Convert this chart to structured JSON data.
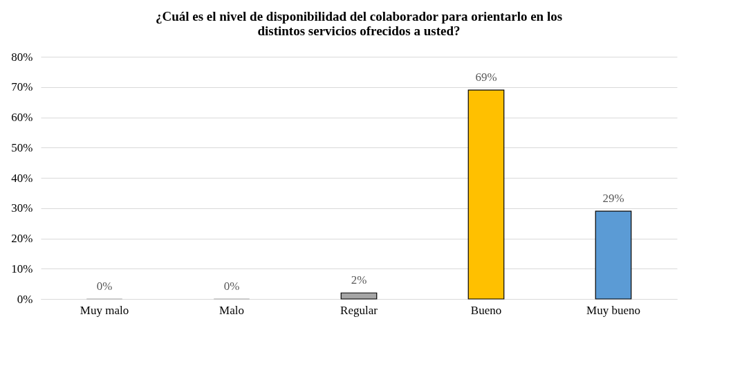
{
  "chart_data": {
    "type": "bar",
    "title": "¿Cuál es el nivel de disponibilidad del colaborador para orientarlo en los distintos servicios ofrecidos a usted?",
    "categories": [
      "Muy malo",
      "Malo",
      "Regular",
      "Bueno",
      "Muy bueno"
    ],
    "values": [
      0,
      0,
      2,
      69,
      29
    ],
    "colors": [
      "#a5a5a5",
      "#a5a5a5",
      "#a5a5a5",
      "#ffc000",
      "#5b9bd5"
    ],
    "value_labels": [
      "0%",
      "0%",
      "2%",
      "69%",
      "29%"
    ],
    "ylim": [
      0,
      80
    ],
    "yticks": [
      {
        "value": 0,
        "label": "0%"
      },
      {
        "value": 10,
        "label": "10%"
      },
      {
        "value": 20,
        "label": "20%"
      },
      {
        "value": 30,
        "label": "30%"
      },
      {
        "value": 40,
        "label": "40%"
      },
      {
        "value": 50,
        "label": "50%"
      },
      {
        "value": 60,
        "label": "60%"
      },
      {
        "value": 70,
        "label": "70%"
      },
      {
        "value": 80,
        "label": "80%"
      }
    ],
    "grid": "y"
  }
}
